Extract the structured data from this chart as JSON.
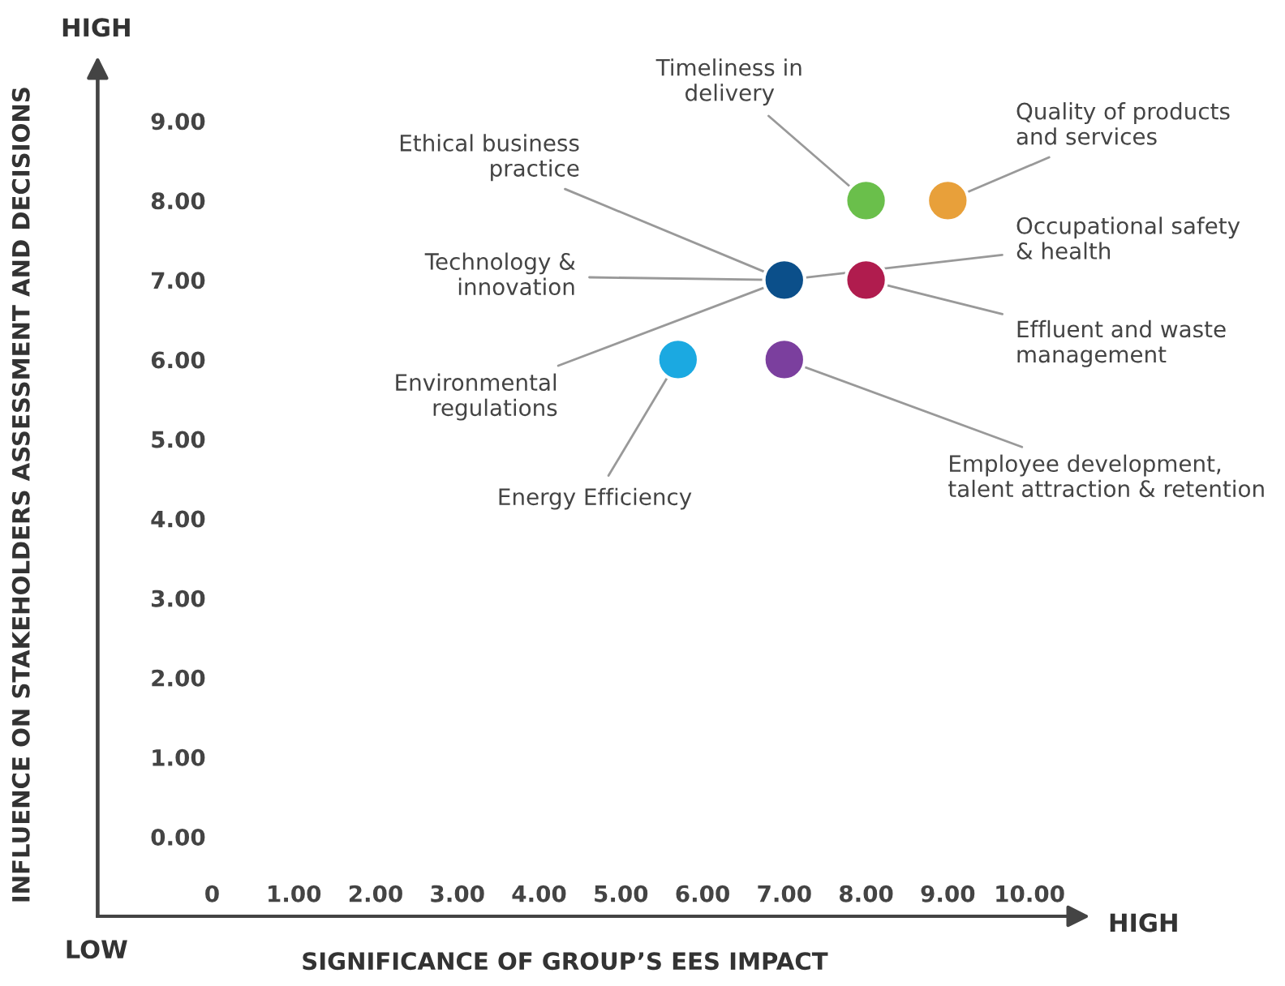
{
  "chart_data": {
    "type": "scatter",
    "xlabel": "SIGNIFICANCE OF GROUP’S EES IMPACT",
    "ylabel": "INFLUENCE ON STAKEHOLDERS ASSESSMENT AND DECISIONS",
    "x": [
      8,
      9,
      7,
      8,
      7,
      5.7
    ],
    "series": [
      {
        "values": [
          8,
          8,
          7,
          7,
          6,
          6
        ],
        "colors": [
          "#6abf4b",
          "#e8a03a",
          "#0b4f8a",
          "#b01c4e",
          "#7b3f9e",
          "#1ba9e1"
        ]
      }
    ],
    "marker": "circle",
    "grid": false,
    "legend": false,
    "xlim": [
      -1.4,
      10.5
    ],
    "xticks": [
      0,
      {
        "value": 1,
        "label": "1.00"
      },
      {
        "value": 2,
        "label": "2.00"
      },
      {
        "value": 3,
        "label": "3.00"
      },
      {
        "value": 4,
        "label": "4.00"
      },
      {
        "value": 5,
        "label": "5.00"
      },
      {
        "value": 6,
        "label": "6.00"
      },
      {
        "value": 7,
        "label": "7.00"
      },
      {
        "value": 8,
        "label": "8.00"
      },
      {
        "value": 9,
        "label": "9.00"
      },
      {
        "value": 10,
        "label": "10.00"
      }
    ],
    "ylim": [
      -1.0,
      9.6
    ],
    "yticks": [
      {
        "value": 0,
        "label": "0.00"
      },
      {
        "value": 1,
        "label": "1.00"
      },
      {
        "value": 2,
        "label": "2.00"
      },
      {
        "value": 3,
        "label": "3.00"
      },
      {
        "value": 4,
        "label": "4.00"
      },
      {
        "value": 5,
        "label": "5.00"
      },
      {
        "value": 6,
        "label": "6.00"
      },
      {
        "value": 7,
        "label": "7.00"
      },
      {
        "value": 8,
        "label": "8.00"
      },
      {
        "value": 9,
        "label": "9.00"
      }
    ],
    "annotations": [
      {
        "text": "Timeliness in\ndelivery",
        "x": 8,
        "y": 8
      },
      {
        "text": "Quality of products\nand services",
        "x": 9,
        "y": 8
      },
      {
        "text": "Ethical business\npractice",
        "x": 7,
        "y": 7
      },
      {
        "text": "Technology &\ninnovation",
        "x": 7,
        "y": 7
      },
      {
        "text": "Environmental\nregulations",
        "x": 7,
        "y": 7
      },
      {
        "text": "Occupational safety\n& health",
        "x": 7,
        "y": 7
      },
      {
        "text": "Effluent and waste\nmanagement",
        "x": 8,
        "y": 7
      },
      {
        "text": "Employee development,\ntalent attraction & retention",
        "x": 7,
        "y": 6
      },
      {
        "text": "Energy Efficiency",
        "x": 5.7,
        "y": 6
      },
      "HIGH",
      "LOW",
      "HIGH"
    ]
  }
}
